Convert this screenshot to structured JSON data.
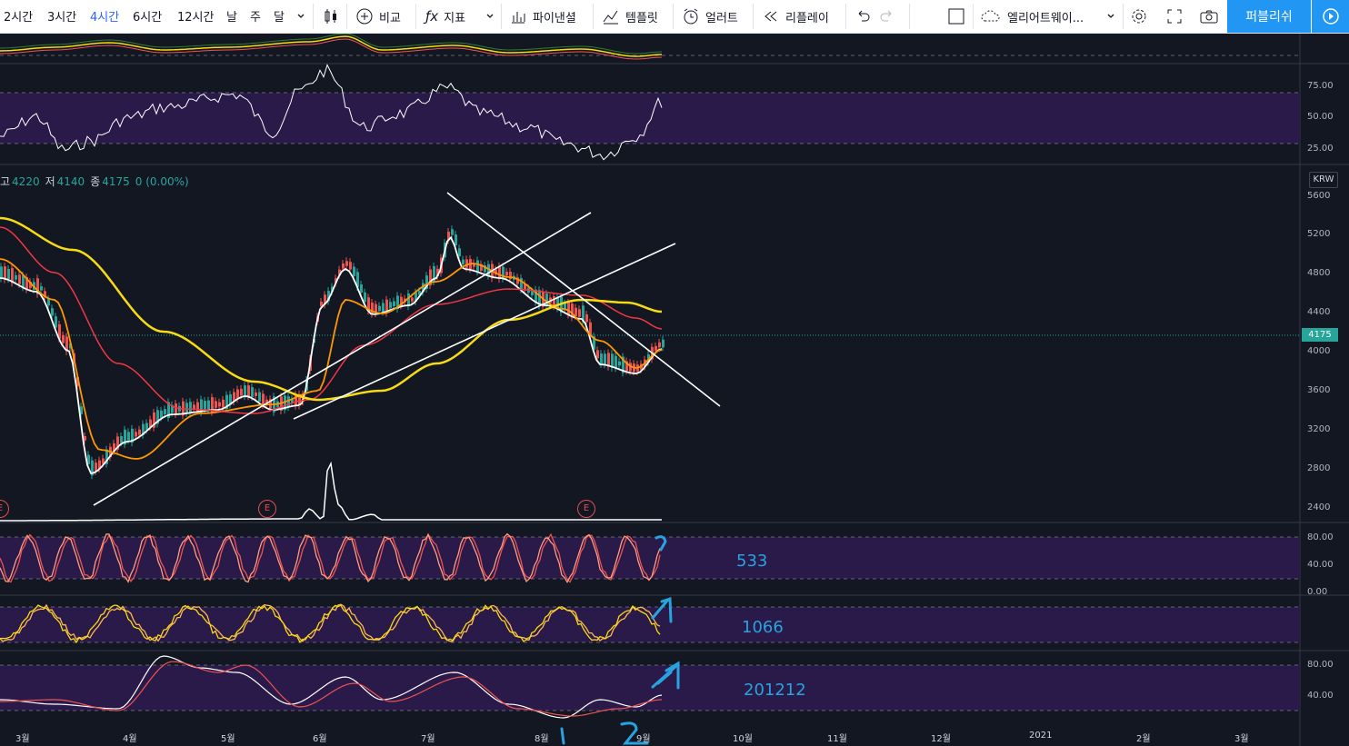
{
  "toolbar": {
    "timeframes": [
      "2시간",
      "3시간",
      "4시간",
      "6시간",
      "12시간",
      "날",
      "주",
      "달"
    ],
    "active_timeframe": "4시간",
    "compare_label": "비교",
    "indicators_label": "지표",
    "pine_label": "파이낸셜",
    "template_label": "템플릿",
    "alert_label": "얼러트",
    "replay_label": "리플레이",
    "layout_name": "엘리어트웨이...",
    "publish_label": "퍼블리쉬"
  },
  "legend": {
    "high_label": "고",
    "high_value": "4220",
    "low_label": "저",
    "low_value": "4140",
    "close_label": "종",
    "close_value": "4175",
    "change": "0 (0.00%)"
  },
  "currency": "KRW",
  "last_price": "4175",
  "price_axis": [
    "5600",
    "5200",
    "4800",
    "4400",
    "4000",
    "3600",
    "3200",
    "2800",
    "2400"
  ],
  "rsi_axis": [
    "75.00",
    "50.00",
    "25.00"
  ],
  "stoch1_axis": [
    "80.00",
    "40.00",
    "0.00"
  ],
  "stoch3_axis": [
    "80.00",
    "40.00"
  ],
  "time_axis": [
    "3월",
    "4월",
    "5월",
    "6월",
    "7월",
    "8월",
    "9월",
    "10월",
    "11월",
    "12월",
    "2021",
    "2월",
    "3월"
  ],
  "earnings_marker": "E",
  "annotations": [
    "533",
    "1066",
    "201212"
  ],
  "colors": {
    "up": "#26a69a",
    "down": "#ef5350",
    "ma_fast": "#ffffff",
    "ma_mid": "#ff9800",
    "ma_slow": "#f23645",
    "ma_long": "#f7dc11",
    "pane_fill": "#2a1a4a",
    "accent": "#2196f3"
  }
}
